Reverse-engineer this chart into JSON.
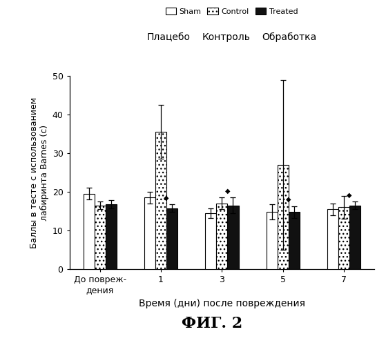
{
  "groups": [
    "До повреж-\nдения",
    "1",
    "3",
    "5",
    "7"
  ],
  "sham_values": [
    19.5,
    18.5,
    14.5,
    14.8,
    15.5
  ],
  "control_values": [
    16.5,
    35.5,
    17.0,
    27.0,
    16.0
  ],
  "treated_values": [
    16.8,
    15.8,
    16.5,
    14.8,
    16.5
  ],
  "sham_errors": [
    1.5,
    1.5,
    1.2,
    2.0,
    1.5
  ],
  "control_errors": [
    1.0,
    7.0,
    1.5,
    22.0,
    3.0
  ],
  "treated_errors": [
    1.0,
    1.0,
    2.0,
    1.5,
    1.0
  ],
  "ylim": [
    0,
    50
  ],
  "yticks": [
    0,
    10,
    20,
    30,
    40,
    50
  ],
  "ytick_labels": [
    "0",
    "10",
    "20",
    "30",
    "40",
    "50"
  ],
  "ylabel": "Баллы в тесте с использованием\nлабиринта Barnes (с)",
  "xlabel": "Время (дни) после повреждения",
  "title": "ФИГ. 2",
  "legend_labels_en": [
    "Sham",
    "Control",
    "Treated"
  ],
  "legend_labels_ru": [
    "Плацебо",
    "Контроль",
    "Обработка"
  ],
  "bar_width": 0.2,
  "group_positions": [
    0,
    1.1,
    2.2,
    3.3,
    4.4
  ],
  "star_indices": [
    1,
    2,
    3,
    4
  ],
  "fig_width": 5.59,
  "fig_height": 5.0,
  "dpi": 100
}
